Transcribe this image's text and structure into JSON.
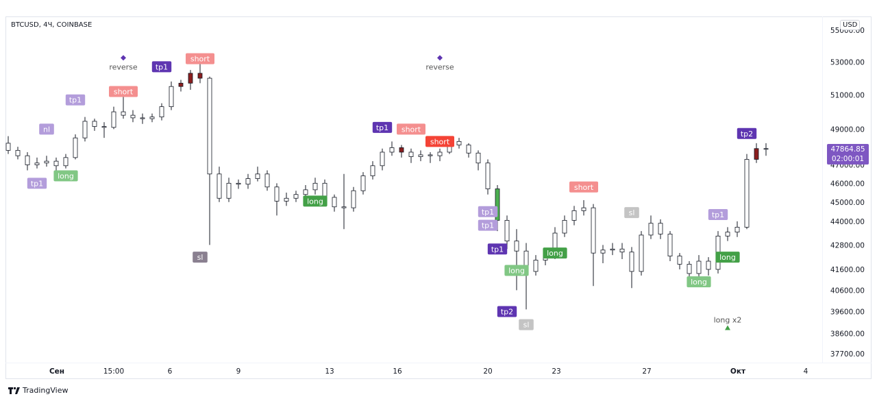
{
  "header": {
    "symbol_title": "BTCUSD, 4Ч, COINBASE",
    "currency": "USD"
  },
  "last_price": {
    "value": "47864.85",
    "countdown": "02:00:01",
    "color": "#7e57c2"
  },
  "footer": {
    "brand": "TradingView"
  },
  "chart_data": {
    "type": "candlestick",
    "title": "BTCUSD, 4Ч, COINBASE",
    "y_scale": "log",
    "ylim": [
      37700,
      55000
    ],
    "y_ticks": [
      55000,
      53000,
      51000,
      49000,
      47000,
      46000,
      45000,
      44000,
      42800,
      41600,
      40600,
      39600,
      38600,
      37700
    ],
    "y_tick_labels": [
      "55000.00",
      "53000.00",
      "51000.00",
      "49000.00",
      "47000.00",
      "46000.00",
      "45000.00",
      "44000.00",
      "42800.00",
      "41600.00",
      "40600.00",
      "39600.00",
      "38600.00",
      "37700.00"
    ],
    "x_tick_labels": [
      "Сен",
      "15:00",
      "6",
      "9",
      "13",
      "16",
      "20",
      "23",
      "27",
      "Окт",
      "4"
    ],
    "grid": false,
    "candles_ohlc": [
      [
        48200,
        48600,
        47600,
        47800
      ],
      [
        47800,
        48000,
        47300,
        47500
      ],
      [
        47500,
        47700,
        46700,
        47000
      ],
      [
        47000,
        47400,
        46800,
        47100
      ],
      [
        47100,
        47500,
        46900,
        47200
      ],
      [
        47200,
        47400,
        46700,
        46950
      ],
      [
        46950,
        47600,
        46800,
        47400
      ],
      [
        47400,
        48700,
        47300,
        48500
      ],
      [
        48500,
        49700,
        48300,
        49450
      ],
      [
        49450,
        49600,
        48900,
        49150
      ],
      [
        49150,
        49400,
        48500,
        49100
      ],
      [
        49100,
        50300,
        49000,
        50000
      ],
      [
        50000,
        50900,
        49600,
        49800
      ],
      [
        49800,
        50100,
        49400,
        49650
      ],
      [
        49650,
        49900,
        49300,
        49600
      ],
      [
        49600,
        49900,
        49400,
        49700
      ],
      [
        49700,
        50500,
        49500,
        50300
      ],
      [
        50300,
        51800,
        50100,
        51500
      ],
      [
        51500,
        51900,
        51200,
        51700
      ],
      [
        51700,
        52500,
        51300,
        52300
      ],
      [
        52300,
        52900,
        51700,
        52000
      ],
      [
        52000,
        52100,
        42800,
        46500
      ],
      [
        46500,
        46900,
        45000,
        45200
      ],
      [
        45200,
        46300,
        45000,
        46000
      ],
      [
        46000,
        46200,
        45700,
        45950
      ],
      [
        45950,
        46500,
        45700,
        46250
      ],
      [
        46250,
        46900,
        46100,
        46500
      ],
      [
        46500,
        46700,
        45600,
        45800
      ],
      [
        45800,
        46000,
        44300,
        45050
      ],
      [
        45050,
        45500,
        44800,
        45200
      ],
      [
        45200,
        45600,
        45000,
        45400
      ],
      [
        45400,
        45900,
        45200,
        45650
      ],
      [
        45650,
        46300,
        45400,
        46000
      ],
      [
        46000,
        46200,
        45000,
        45250
      ],
      [
        45250,
        45400,
        44500,
        44750
      ],
      [
        44750,
        46500,
        43600,
        44700
      ],
      [
        44700,
        45800,
        44500,
        45600
      ],
      [
        45600,
        46600,
        45400,
        46400
      ],
      [
        46400,
        47200,
        46200,
        46950
      ],
      [
        46950,
        47900,
        46700,
        47700
      ],
      [
        47700,
        48300,
        47500,
        47950
      ],
      [
        47950,
        48100,
        47400,
        47700
      ],
      [
        47700,
        47900,
        47100,
        47450
      ],
      [
        47450,
        47800,
        47200,
        47550
      ],
      [
        47550,
        47700,
        47100,
        47500
      ],
      [
        47500,
        47900,
        47200,
        47700
      ],
      [
        47700,
        48600,
        47600,
        48300
      ],
      [
        48300,
        48500,
        47900,
        48100
      ],
      [
        48100,
        48200,
        47400,
        47650
      ],
      [
        47650,
        47800,
        46700,
        47100
      ],
      [
        47100,
        47300,
        45400,
        45700
      ],
      [
        45700,
        45900,
        43500,
        44050
      ],
      [
        44050,
        44300,
        42600,
        43000
      ],
      [
        43000,
        43600,
        40600,
        42500
      ],
      [
        42500,
        42900,
        39700,
        41500
      ],
      [
        41500,
        42300,
        41300,
        42050
      ],
      [
        42050,
        42600,
        41800,
        42300
      ],
      [
        42300,
        43700,
        42100,
        43400
      ],
      [
        43400,
        44300,
        43200,
        44050
      ],
      [
        44050,
        44800,
        43800,
        44550
      ],
      [
        44550,
        45100,
        44300,
        44700
      ],
      [
        44700,
        44900,
        40800,
        42400
      ],
      [
        42400,
        42800,
        41900,
        42550
      ],
      [
        42550,
        42900,
        42300,
        42600
      ],
      [
        42600,
        42900,
        42100,
        42450
      ],
      [
        42450,
        42700,
        40700,
        41500
      ],
      [
        41500,
        43500,
        41300,
        43300
      ],
      [
        43300,
        44300,
        43100,
        43900
      ],
      [
        43900,
        44100,
        43100,
        43350
      ],
      [
        43350,
        43500,
        42000,
        42250
      ],
      [
        42250,
        42400,
        41600,
        41850
      ],
      [
        41850,
        42000,
        41000,
        41400
      ],
      [
        41400,
        42300,
        41200,
        42000
      ],
      [
        42000,
        42200,
        41300,
        41600
      ],
      [
        41600,
        43500,
        41400,
        43250
      ],
      [
        43250,
        43700,
        43000,
        43450
      ],
      [
        43450,
        44000,
        43200,
        43700
      ],
      [
        43700,
        47600,
        43600,
        47300
      ],
      [
        47300,
        48200,
        47100,
        47900
      ],
      [
        47900,
        48200,
        47500,
        47865
      ]
    ],
    "filled_down_candles": [
      18,
      19,
      20,
      41,
      78
    ],
    "filled_up_candles": [
      51
    ],
    "colors": {
      "hollow_border": "#131722",
      "filled_down": "#8b1e1e",
      "filled_up": "#4caf50"
    },
    "markers": [
      {
        "label": "nl",
        "candle": 4,
        "price": 49000,
        "style": "tp_light"
      },
      {
        "label": "tp1",
        "candle": 3,
        "price": 46000,
        "style": "tp_light"
      },
      {
        "label": "long",
        "candle": 6,
        "price": 46400,
        "style": "long_light"
      },
      {
        "label": "tp1",
        "candle": 7,
        "price": 50700,
        "style": "tp_light"
      },
      {
        "label": "short",
        "candle": 12,
        "price": 51200,
        "style": "short_light"
      },
      {
        "label": "reverse",
        "candle": 12,
        "price": 53250,
        "style": "reverse"
      },
      {
        "label": "tp1",
        "candle": 16,
        "price": 52700,
        "style": "tp_dark"
      },
      {
        "label": "short",
        "candle": 20,
        "price": 53200,
        "style": "short_light"
      },
      {
        "label": "sl",
        "candle": 20,
        "price": 42200,
        "style": "sl_dark"
      },
      {
        "label": "long",
        "candle": 32,
        "price": 45050,
        "style": "long_dark"
      },
      {
        "label": "tp1",
        "candle": 39,
        "price": 49100,
        "style": "tp_dark"
      },
      {
        "label": "short",
        "candle": 42,
        "price": 49000,
        "style": "short_light"
      },
      {
        "label": "reverse",
        "candle": 45,
        "price": 53250,
        "style": "reverse"
      },
      {
        "label": "short",
        "candle": 45,
        "price": 48300,
        "style": "short_dark"
      },
      {
        "label": "tp1",
        "candle": 50,
        "price": 44500,
        "style": "tp_light"
      },
      {
        "label": "tp1",
        "candle": 50,
        "price": 43800,
        "style": "tp_light"
      },
      {
        "label": "tp1",
        "candle": 51,
        "price": 42600,
        "style": "tp_dark"
      },
      {
        "label": "long",
        "candle": 53,
        "price": 41550,
        "style": "long_light"
      },
      {
        "label": "tp2",
        "candle": 52,
        "price": 39600,
        "style": "tp_dark"
      },
      {
        "label": "sl",
        "candle": 54,
        "price": 39000,
        "style": "sl_light"
      },
      {
        "label": "long",
        "candle": 57,
        "price": 42400,
        "style": "long_dark"
      },
      {
        "label": "short",
        "candle": 60,
        "price": 45800,
        "style": "short_light"
      },
      {
        "label": "sl",
        "candle": 65,
        "price": 44450,
        "style": "sl_light"
      },
      {
        "label": "tp1",
        "candle": 74,
        "price": 44350,
        "style": "tp_light"
      },
      {
        "label": "long",
        "candle": 75,
        "price": 42200,
        "style": "long_dark"
      },
      {
        "label": "long",
        "candle": 72,
        "price": 41000,
        "style": "long_light"
      },
      {
        "label": "long x2",
        "candle": 75,
        "price": 38850,
        "style": "long_x2"
      },
      {
        "label": "tp2",
        "candle": 77,
        "price": 48750,
        "style": "tp_dark"
      }
    ],
    "marker_colors": {
      "tp_light": "#b39ddb",
      "tp_dark": "#5e35b1",
      "short_light": "#f48f8f",
      "short_dark": "#f44336",
      "long_light": "#81c784",
      "long_dark": "#43a047",
      "sl_light": "#c4c4c4",
      "sl_dark": "#8a8090",
      "reverse": "#5e35b1",
      "long_x2": "#43a047"
    }
  }
}
